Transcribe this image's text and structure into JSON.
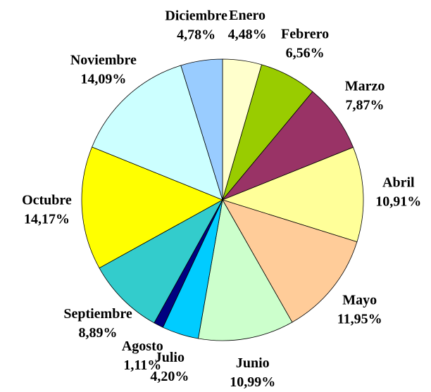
{
  "chart_data": {
    "type": "pie",
    "categories": [
      "Enero",
      "Febrero",
      "Marzo",
      "Abril",
      "Mayo",
      "Junio",
      "Julio",
      "Agosto",
      "Septiembre",
      "Octubre",
      "Noviembre",
      "Diciembre"
    ],
    "values": [
      4.48,
      6.56,
      7.87,
      10.91,
      11.95,
      10.99,
      4.2,
      1.11,
      8.89,
      14.17,
      14.09,
      4.78
    ],
    "value_labels": [
      "4,48%",
      "6,56%",
      "7,87%",
      "10,91%",
      "11,95%",
      "10,99%",
      "4,20%",
      "1,11%",
      "8,89%",
      "14,17%",
      "14,09%",
      "4,78%"
    ],
    "colors": [
      "#ffffcc",
      "#99cc00",
      "#993366",
      "#ffff99",
      "#ffcc99",
      "#ccffcc",
      "#00ccff",
      "#000080",
      "#33cccc",
      "#ffff00",
      "#ccffff",
      "#99ccff"
    ]
  }
}
